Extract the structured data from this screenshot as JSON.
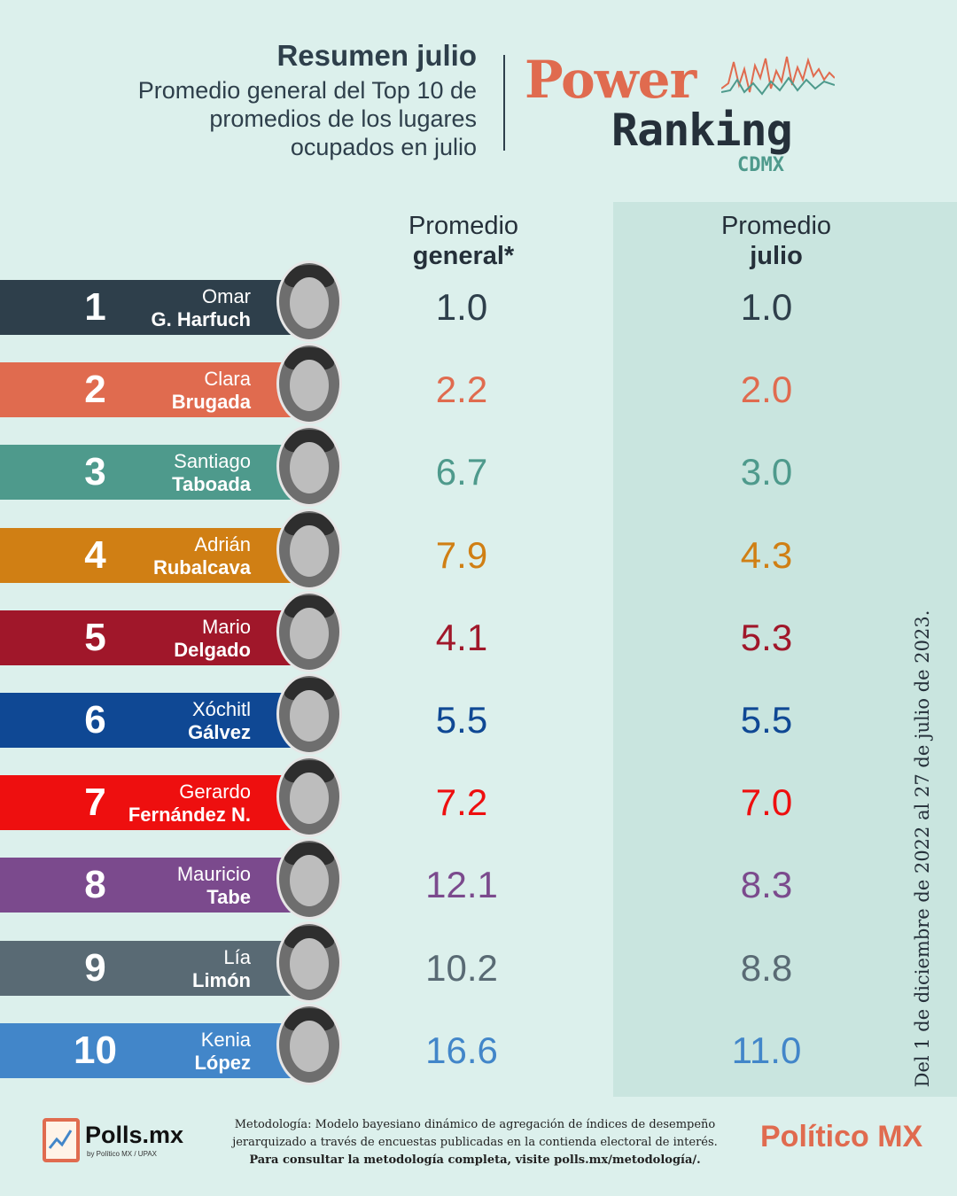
{
  "header": {
    "title": "Resumen julio",
    "subtitle_line1": "Promedio general del Top 10 de",
    "subtitle_line2": "promedios de los lugares",
    "subtitle_line3": "ocupados en julio"
  },
  "logo": {
    "word1": "Power",
    "word2": "Ranking",
    "word3": "CDMX"
  },
  "columns": {
    "general_line1": "Promedio",
    "general_line2": "general*",
    "julio_line1": "Promedio",
    "julio_line2": "julio"
  },
  "chart_data": {
    "type": "table",
    "columns": [
      "Promedio general*",
      "Promedio julio"
    ],
    "rows": [
      {
        "rank": "1",
        "first": "Omar",
        "last": "G. Harfuch",
        "general": "1.0",
        "julio": "1.0",
        "color": "#2e3f4b"
      },
      {
        "rank": "2",
        "first": "Clara",
        "last": "Brugada",
        "general": "2.2",
        "julio": "2.0",
        "color": "#e06b4f"
      },
      {
        "rank": "3",
        "first": "Santiago",
        "last": "Taboada",
        "general": "6.7",
        "julio": "3.0",
        "color": "#4e9a8c"
      },
      {
        "rank": "4",
        "first": "Adrián",
        "last": "Rubalcava",
        "general": "7.9",
        "julio": "4.3",
        "color": "#d07f14"
      },
      {
        "rank": "5",
        "first": "Mario",
        "last": "Delgado",
        "general": "4.1",
        "julio": "5.3",
        "color": "#a0172a"
      },
      {
        "rank": "6",
        "first": "Xóchitl",
        "last": "Gálvez",
        "general": "5.5",
        "julio": "5.5",
        "color": "#0f4894"
      },
      {
        "rank": "7",
        "first": "Gerardo",
        "last": "Fernández N.",
        "general": "7.2",
        "julio": "7.0",
        "color": "#ee0f0f"
      },
      {
        "rank": "8",
        "first": "Mauricio",
        "last": "Tabe",
        "general": "12.1",
        "julio": "8.3",
        "color": "#7b4a8d"
      },
      {
        "rank": "9",
        "first": "Lía",
        "last": "Limón",
        "general": "10.2",
        "julio": "8.8",
        "color": "#596a74"
      },
      {
        "rank": "10",
        "first": "Kenia",
        "last": "López",
        "general": "16.6",
        "julio": "11.0",
        "color": "#4286c9"
      }
    ]
  },
  "side_note": "Del 1 de diciembre de 2022 al 27 de julio de 2023.",
  "footer": {
    "polls_name": "Polls.mx",
    "polls_by": "by Político MX / UPAX",
    "method_line1": "Metodología: Modelo bayesiano dinámico de agregación de índices de desempeño",
    "method_line2": "jerarquizado a través de encuestas publicadas en la contienda electoral de interés.",
    "method_line3": "Para consultar la metodología completa, visite polls.mx/metodología/.",
    "politico": "Político MX"
  }
}
